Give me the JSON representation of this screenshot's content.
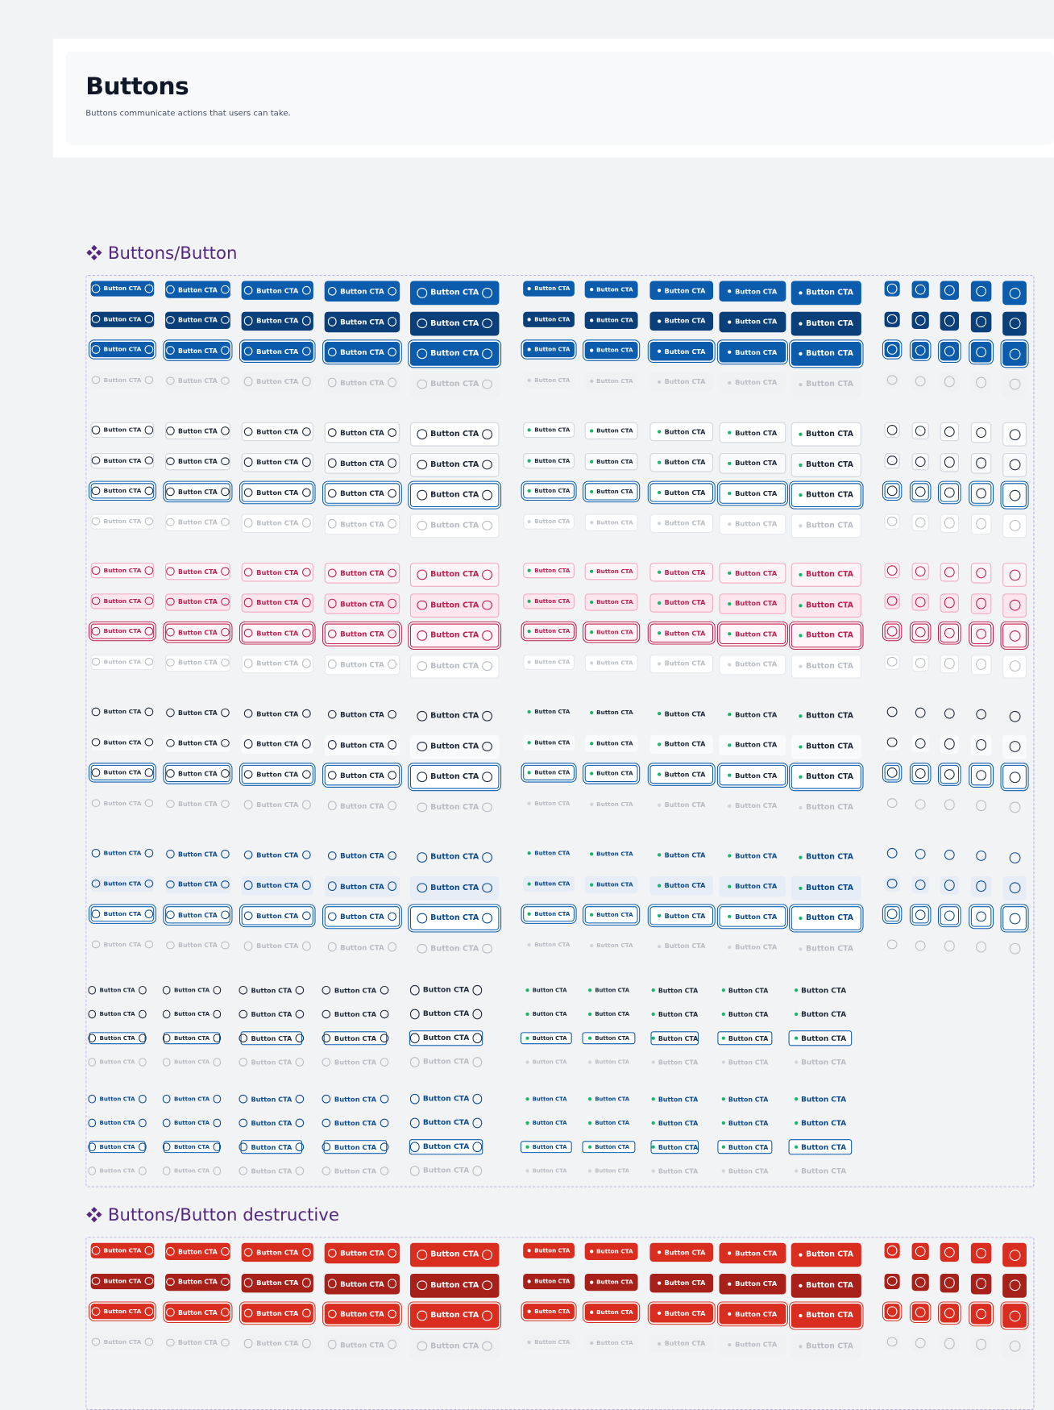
{
  "header": {
    "title": "Buttons",
    "description": "Buttons communicate actions that users can take."
  },
  "sections": [
    {
      "title": "Buttons/Button"
    },
    {
      "title": "Buttons/Button destructive"
    }
  ],
  "button_label": "Button CTA"
}
